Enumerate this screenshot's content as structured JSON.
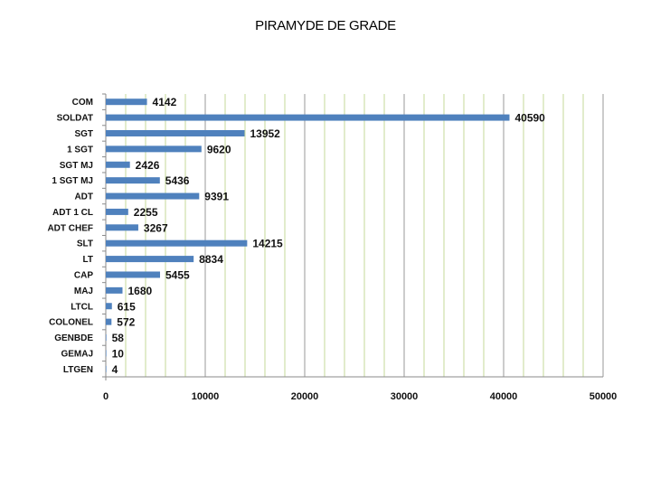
{
  "slide": {
    "title": "PIRAMYDE DE GRADE"
  },
  "chart_data": {
    "type": "bar",
    "orientation": "horizontal",
    "title": "",
    "xlabel": "",
    "ylabel": "",
    "categories": [
      "COM",
      "SOLDAT",
      "SGT",
      "1 SGT",
      "SGT MJ",
      "1 SGT MJ",
      "ADT",
      "ADT 1 CL",
      "ADT CHEF",
      "SLT",
      "LT",
      "CAP",
      "MAJ",
      "LTCL",
      "COLONEL",
      "GENBDE",
      "GEMAJ",
      "LTGEN"
    ],
    "values": [
      4142,
      40590,
      13952,
      9620,
      2426,
      5436,
      9391,
      2255,
      3267,
      14215,
      8834,
      5455,
      1680,
      615,
      572,
      58,
      10,
      4
    ],
    "xlim": [
      0,
      50000
    ],
    "xticks": [
      0,
      10000,
      20000,
      30000,
      40000,
      50000
    ],
    "grid": "vertical",
    "legend": "none",
    "colors": {
      "bar": "#4f81bd",
      "grid_minor": "#c4d99a",
      "grid_major": "#9a9a9a"
    }
  }
}
